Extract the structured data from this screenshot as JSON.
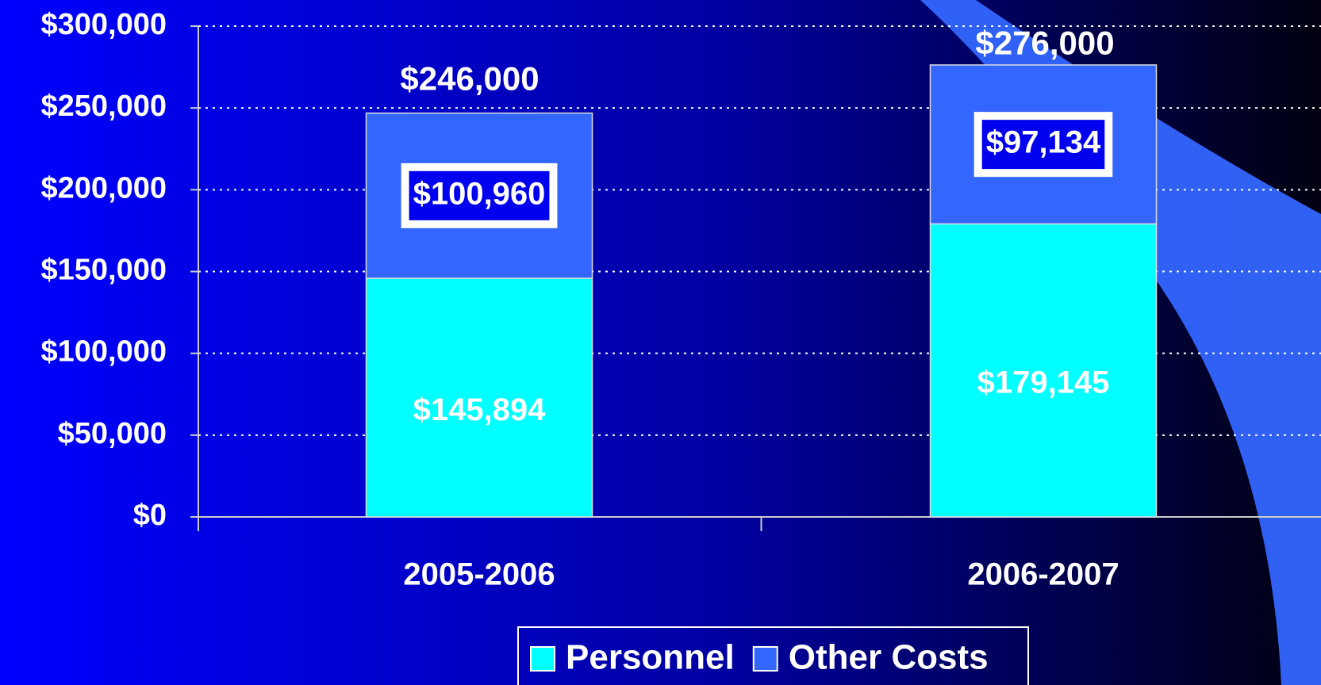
{
  "chart_data": {
    "type": "stacked_bar",
    "categories": [
      "2005-2006",
      "2006-2007"
    ],
    "series": [
      {
        "name": "Personnel",
        "color": "#00ffff",
        "values": [
          145894,
          179145
        ],
        "value_labels": [
          "$145,894",
          "$179,145"
        ]
      },
      {
        "name": "Other Costs",
        "color": "#3366ff",
        "values": [
          100960,
          97134
        ],
        "value_labels": [
          "$100,960",
          "$97,134"
        ]
      }
    ],
    "totals": [
      246000,
      276000
    ],
    "total_labels": [
      "$246,000",
      "$276,000"
    ],
    "ylim": [
      0,
      300000
    ],
    "yticks": [
      {
        "value": 0,
        "label": "$0"
      },
      {
        "value": 50000,
        "label": "$50,000"
      },
      {
        "value": 100000,
        "label": "$100,000"
      },
      {
        "value": 150000,
        "label": "$150,000"
      },
      {
        "value": 200000,
        "label": "$200,000"
      },
      {
        "value": 250000,
        "label": "$250,000"
      },
      {
        "value": 300000,
        "label": "$300,000"
      }
    ],
    "grid": true,
    "legend": "bottom"
  }
}
